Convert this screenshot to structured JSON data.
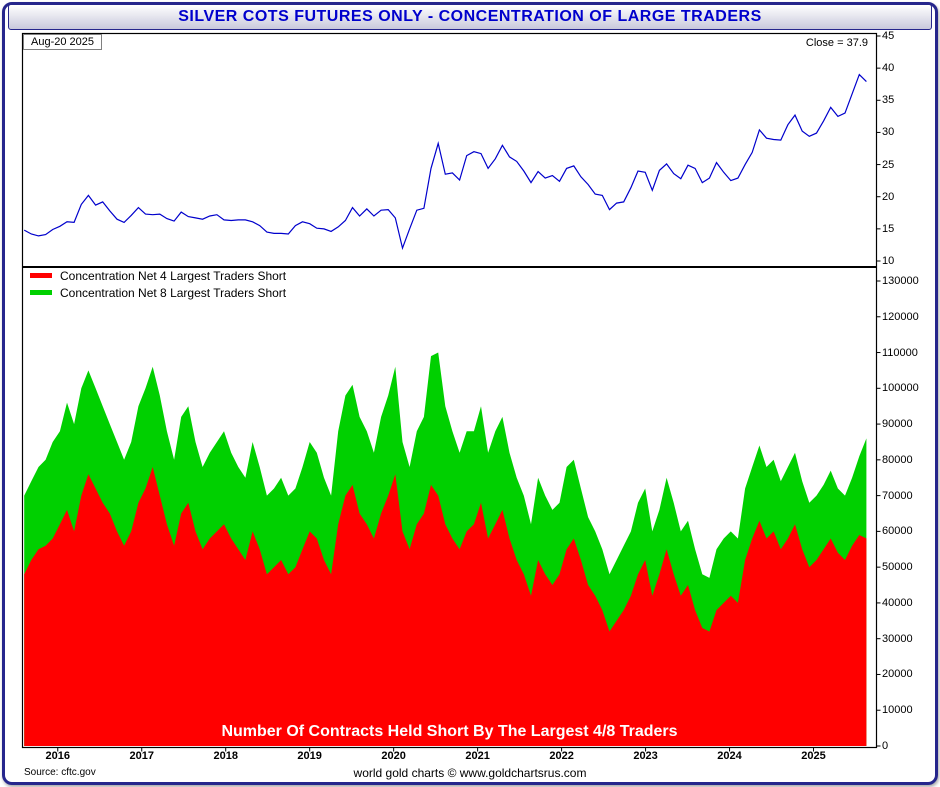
{
  "title": "SILVER COTS FUTURES ONLY - CONCENTRATION OF LARGE TRADERS",
  "annotations": {
    "date_label": "Aug-20  2025",
    "close_label": "Close = 37.9",
    "bottom_label": "Number Of Contracts Held Short By The Largest 4/8 Traders"
  },
  "legend": [
    {
      "label": "Concentration Net 4 Largest Traders Short",
      "color": "#ff0000"
    },
    {
      "label": "Concentration Net 8 Largest Traders Short",
      "color": "#00d000"
    }
  ],
  "footer": {
    "source": "Source: cftc.gov",
    "credit": "world gold charts © www.goldchartsrus.com"
  },
  "colors": {
    "price_line": "#0000cc",
    "net4": "#ff0000",
    "net8": "#00d000",
    "title_text": "#0000cc",
    "window_border": "#26268c"
  },
  "chart_data": {
    "type": "area",
    "x_start_year": 2015.6,
    "x_end_year": 2025.63,
    "x_ticks": [
      2016,
      2017,
      2018,
      2019,
      2020,
      2021,
      2022,
      2023,
      2024,
      2025
    ],
    "top_panel": {
      "name": "Silver futures price",
      "ylim": [
        10,
        45
      ],
      "y_ticks": [
        45,
        40,
        35,
        30,
        25,
        20,
        15,
        10
      ],
      "close": 37.9,
      "values": [
        14.8,
        14.2,
        13.9,
        14.1,
        14.9,
        15.4,
        16.1,
        16.0,
        18.8,
        20.2,
        18.7,
        19.2,
        17.8,
        16.5,
        16.0,
        17.1,
        18.3,
        17.3,
        17.2,
        17.3,
        16.6,
        16.2,
        17.6,
        16.9,
        16.7,
        16.5,
        17.0,
        17.2,
        16.4,
        16.3,
        16.4,
        16.4,
        16.1,
        15.5,
        14.5,
        14.3,
        14.3,
        14.2,
        15.5,
        16.1,
        15.8,
        15.1,
        15.0,
        14.6,
        15.3,
        16.3,
        18.3,
        17.0,
        18.1,
        17.0,
        17.9,
        18.0,
        16.7,
        12.0,
        15.0,
        17.9,
        18.2,
        24.4,
        28.3,
        23.5,
        23.7,
        22.6,
        26.4,
        27.0,
        26.7,
        24.4,
        25.9,
        28.0,
        26.2,
        25.5,
        24.0,
        22.2,
        23.9,
        22.9,
        23.3,
        22.4,
        24.4,
        24.8,
        23.1,
        21.9,
        20.4,
        20.2,
        18.0,
        19.0,
        19.2,
        21.4,
        24.0,
        23.8,
        21.0,
        24.1,
        25.1,
        23.6,
        22.8,
        24.9,
        24.4,
        22.2,
        22.9,
        25.3,
        23.8,
        22.5,
        22.9,
        25.0,
        26.9,
        30.4,
        29.1,
        28.9,
        28.8,
        31.2,
        32.7,
        30.2,
        29.4,
        29.9,
        31.8,
        33.9,
        32.5,
        33.0,
        36.0,
        39.0,
        37.9
      ]
    },
    "bottom_panel": {
      "ylim": [
        0,
        130000
      ],
      "y_ticks": [
        130000,
        120000,
        110000,
        100000,
        90000,
        80000,
        70000,
        60000,
        50000,
        40000,
        30000,
        20000,
        10000,
        0
      ],
      "series": [
        {
          "name": "Concentration Net 8 Largest Traders Short",
          "color": "#00d000",
          "values": [
            70000,
            74000,
            78000,
            80000,
            85000,
            88000,
            96000,
            90000,
            100000,
            105000,
            100000,
            95000,
            90000,
            85000,
            80000,
            85000,
            95000,
            100000,
            106000,
            98000,
            88000,
            80000,
            92000,
            95000,
            85000,
            78000,
            82000,
            85000,
            88000,
            82000,
            78000,
            75000,
            85000,
            78000,
            70000,
            72000,
            75000,
            70000,
            72000,
            78000,
            85000,
            82000,
            75000,
            70000,
            88000,
            98000,
            101000,
            92000,
            88000,
            82000,
            92000,
            98000,
            106000,
            85000,
            78000,
            88000,
            92000,
            109000,
            110000,
            95000,
            88000,
            82000,
            88000,
            88000,
            95000,
            82000,
            88000,
            92000,
            82000,
            75000,
            70000,
            62000,
            75000,
            70000,
            66000,
            68000,
            78000,
            80000,
            72000,
            64000,
            60000,
            55000,
            48000,
            52000,
            56000,
            60000,
            68000,
            72000,
            60000,
            66000,
            75000,
            68000,
            60000,
            63000,
            55000,
            48000,
            47000,
            55000,
            58000,
            60000,
            58000,
            72000,
            78000,
            84000,
            78000,
            80000,
            74000,
            78000,
            82000,
            74000,
            68000,
            70000,
            73000,
            77000,
            72000,
            70000,
            75000,
            81000,
            86000
          ]
        },
        {
          "name": "Concentration Net 4 Largest Traders Short",
          "color": "#ff0000",
          "values": [
            48000,
            52000,
            55000,
            56000,
            58000,
            62000,
            66000,
            60000,
            70000,
            76000,
            72000,
            68000,
            65000,
            60000,
            56000,
            60000,
            68000,
            72000,
            78000,
            70000,
            62000,
            56000,
            65000,
            68000,
            60000,
            55000,
            58000,
            60000,
            62000,
            58000,
            55000,
            52000,
            60000,
            55000,
            48000,
            50000,
            52000,
            48000,
            50000,
            55000,
            60000,
            58000,
            52000,
            48000,
            62000,
            70000,
            73000,
            65000,
            62000,
            58000,
            65000,
            70000,
            76000,
            60000,
            55000,
            62000,
            65000,
            73000,
            70000,
            62000,
            58000,
            55000,
            60000,
            62000,
            68000,
            58000,
            62000,
            66000,
            58000,
            52000,
            48000,
            42000,
            52000,
            48000,
            45000,
            48000,
            55000,
            58000,
            52000,
            45000,
            42000,
            38000,
            32000,
            35000,
            38000,
            42000,
            48000,
            52000,
            42000,
            48000,
            55000,
            48000,
            42000,
            45000,
            38000,
            33000,
            32000,
            38000,
            40000,
            42000,
            40000,
            52000,
            58000,
            63000,
            58000,
            60000,
            55000,
            58000,
            62000,
            55000,
            50000,
            52000,
            55000,
            58000,
            54000,
            52000,
            56000,
            59000,
            58000
          ]
        }
      ]
    }
  }
}
